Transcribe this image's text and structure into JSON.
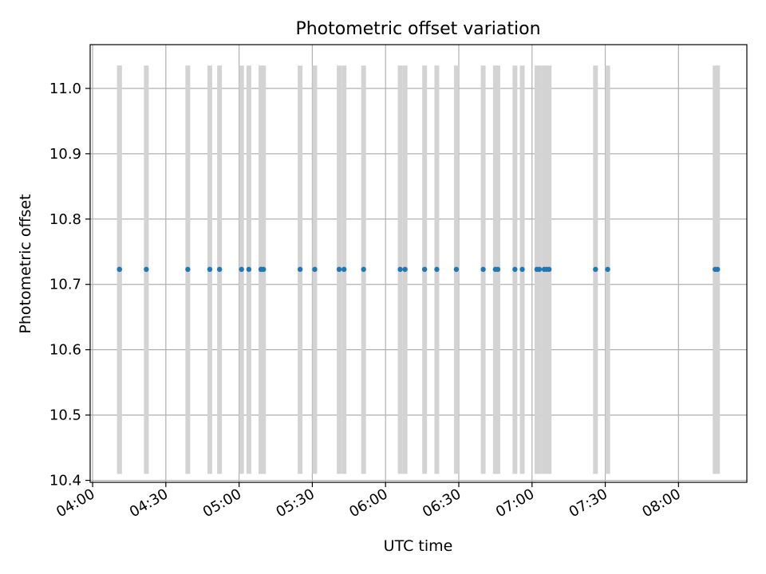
{
  "chart_data": {
    "type": "scatter",
    "title": "Photometric offset variation",
    "xlabel": "UTC time",
    "ylabel": "Photometric offset",
    "x_tick_labels": [
      "04:00",
      "04:30",
      "05:00",
      "05:30",
      "06:00",
      "06:30",
      "07:00",
      "07:30",
      "08:00"
    ],
    "y_tick_labels": [
      "10.4",
      "10.5",
      "10.6",
      "10.7",
      "10.8",
      "10.9",
      "11.0"
    ],
    "y_ticks": [
      10.4,
      10.5,
      10.6,
      10.7,
      10.8,
      10.9,
      11.0
    ],
    "xlim": [
      "03:59",
      "08:28"
    ],
    "ylim": [
      10.397,
      11.067
    ],
    "grid": true,
    "colors": {
      "points": "#1f77b4",
      "error_bars": "#d3d3d3",
      "grid": "#b0b0b0"
    },
    "error_bar_range": [
      10.41,
      11.035
    ],
    "points": {
      "y": 10.723,
      "x": [
        "04:11",
        "04:11",
        "04:22",
        "04:39",
        "04:48",
        "04:52",
        "05:01",
        "05:04",
        "05:09",
        "05:09",
        "05:10",
        "05:25",
        "05:31",
        "05:41",
        "05:43",
        "05:51",
        "06:06",
        "06:08",
        "06:16",
        "06:21",
        "06:29",
        "06:40",
        "06:45",
        "06:46",
        "06:53",
        "06:56",
        "07:02",
        "07:03",
        "07:05",
        "07:06",
        "07:07",
        "07:26",
        "07:31",
        "08:15",
        "08:16"
      ]
    }
  }
}
